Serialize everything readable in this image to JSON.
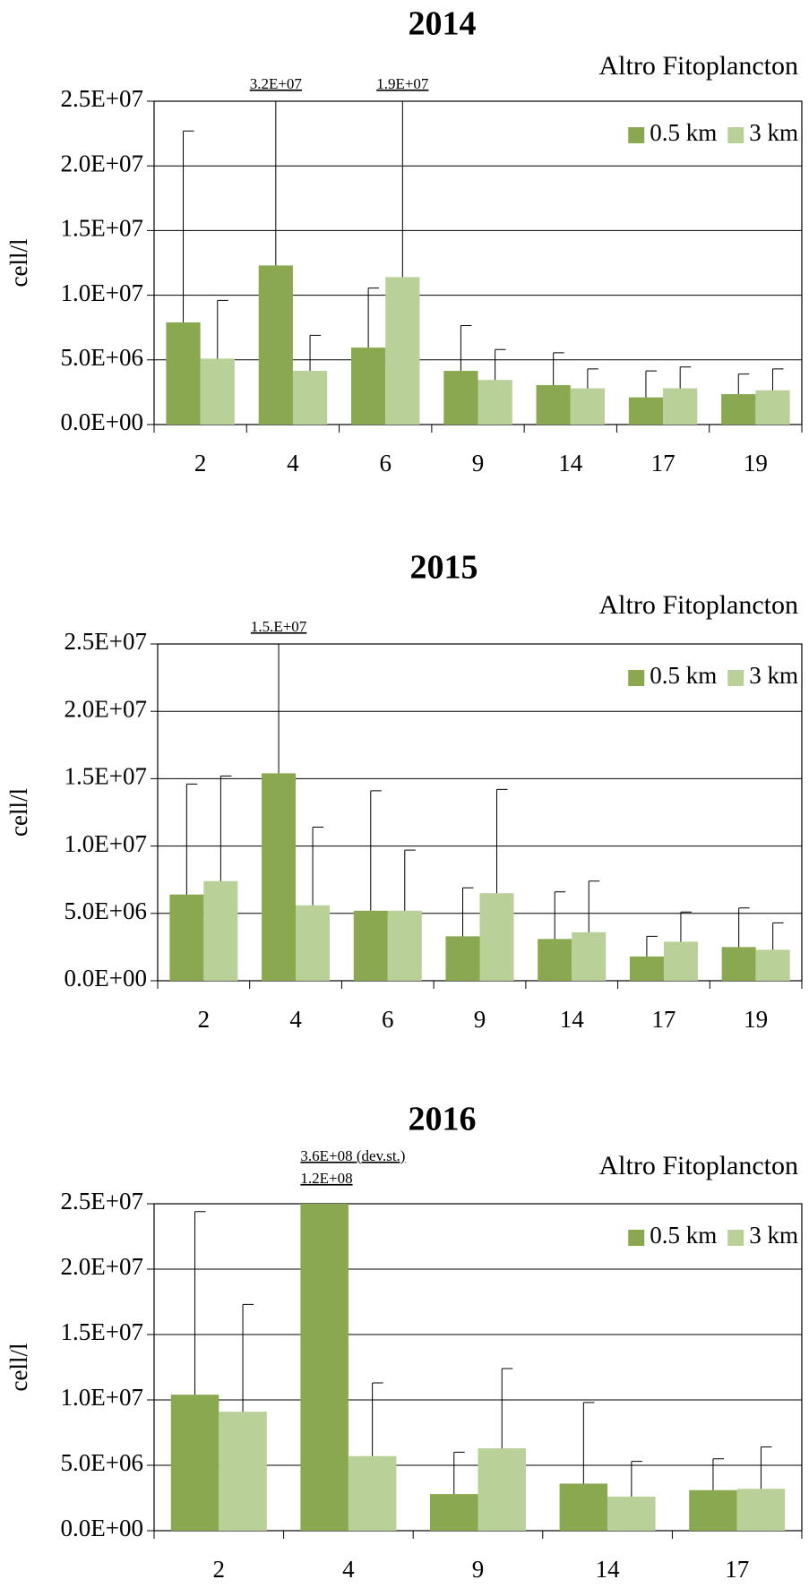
{
  "chart_data": [
    {
      "type": "bar",
      "title": "2014",
      "subtitle": "Altro Fitoplancton",
      "y_label": "cell/l",
      "categories": [
        "2",
        "4",
        "6",
        "9",
        "14",
        "17",
        "19"
      ],
      "series": [
        {
          "name": "0.5 km",
          "color": "#8aa84f",
          "values": [
            7900000,
            12300000,
            5950000,
            4150000,
            3050000,
            2100000,
            2350000
          ],
          "errors": [
            14800000,
            32000000,
            4600000,
            3500000,
            2500000,
            2050000,
            1550000
          ],
          "error_labels": [
            null,
            "3.2E+07",
            null,
            null,
            null,
            null,
            null
          ]
        },
        {
          "name": "3 km",
          "color": "#b9d099",
          "values": [
            5100000,
            4150000,
            11400000,
            3450000,
            2800000,
            2800000,
            2650000
          ],
          "errors": [
            4500000,
            2750000,
            19000000,
            2350000,
            1500000,
            1650000,
            1650000
          ],
          "error_labels": [
            null,
            null,
            "1.9E+07",
            null,
            null,
            null,
            null
          ]
        }
      ],
      "ylim": [
        0,
        25000000
      ],
      "yticks": [
        {
          "value": 0,
          "label": "0.0E+00"
        },
        {
          "value": 5000000,
          "label": "5.0E+06"
        },
        {
          "value": 10000000,
          "label": "1.0E+07"
        },
        {
          "value": 15000000,
          "label": "1.5E+07"
        },
        {
          "value": 20000000,
          "label": "2.0E+07"
        },
        {
          "value": 25000000,
          "label": "2.5E+07"
        }
      ],
      "grid": true,
      "legend": "upper right"
    },
    {
      "type": "bar",
      "title": "2015",
      "subtitle": "Altro Fitoplancton",
      "y_label": "cell/l",
      "categories": [
        "2",
        "4",
        "6",
        "9",
        "14",
        "17",
        "19"
      ],
      "series": [
        {
          "name": "0.5 km",
          "color": "#8aa84f",
          "values": [
            6400000,
            15400000,
            5200000,
            3300000,
            3100000,
            1800000,
            2500000
          ],
          "errors": [
            8200000,
            15000000,
            8900000,
            3600000,
            3500000,
            1500000,
            2900000
          ],
          "error_labels": [
            null,
            "1.5.E+07",
            null,
            null,
            null,
            null,
            null
          ]
        },
        {
          "name": "3 km",
          "color": "#b9d099",
          "values": [
            7400000,
            5600000,
            5200000,
            6500000,
            3600000,
            2900000,
            2300000
          ],
          "errors": [
            7800000,
            5800000,
            4500000,
            7700000,
            3800000,
            2200000,
            2000000
          ]
        }
      ],
      "ylim": [
        0,
        25000000
      ],
      "yticks": [
        {
          "value": 0,
          "label": "0.0E+00"
        },
        {
          "value": 5000000,
          "label": "5.0E+06"
        },
        {
          "value": 10000000,
          "label": "1.0E+07"
        },
        {
          "value": 15000000,
          "label": "1.5E+07"
        },
        {
          "value": 20000000,
          "label": "2.0E+07"
        },
        {
          "value": 25000000,
          "label": "2.5E+07"
        }
      ],
      "grid": true,
      "legend": "upper right"
    },
    {
      "type": "bar",
      "title": "2016",
      "subtitle": "Altro Fitoplancton",
      "y_label": "cell/l",
      "categories": [
        "2",
        "4",
        "9",
        "14",
        "17"
      ],
      "series": [
        {
          "name": "0.5 km",
          "color": "#8aa84f",
          "values": [
            10400000,
            120000000,
            2800000,
            3600000,
            3100000
          ],
          "value_labels": [
            null,
            "1.2E+08",
            null,
            null,
            null
          ],
          "errors": [
            14000000,
            360000000,
            3200000,
            6200000,
            2400000
          ],
          "error_labels": [
            null,
            "3.6E+08 (dev.st.)",
            null,
            null,
            null
          ]
        },
        {
          "name": "3 km",
          "color": "#b9d099",
          "values": [
            9100000,
            5700000,
            6300000,
            2600000,
            3200000
          ],
          "errors": [
            8200000,
            5600000,
            6100000,
            2700000,
            3200000
          ]
        }
      ],
      "ylim": [
        0,
        25000000
      ],
      "yticks": [
        {
          "value": 0,
          "label": "0.0E+00"
        },
        {
          "value": 5000000,
          "label": "5.0E+06"
        },
        {
          "value": 10000000,
          "label": "1.0E+07"
        },
        {
          "value": 15000000,
          "label": "1.5E+07"
        },
        {
          "value": 20000000,
          "label": "2.0E+07"
        },
        {
          "value": 25000000,
          "label": "2.5E+07"
        }
      ],
      "grid": true,
      "legend": "upper right"
    }
  ]
}
